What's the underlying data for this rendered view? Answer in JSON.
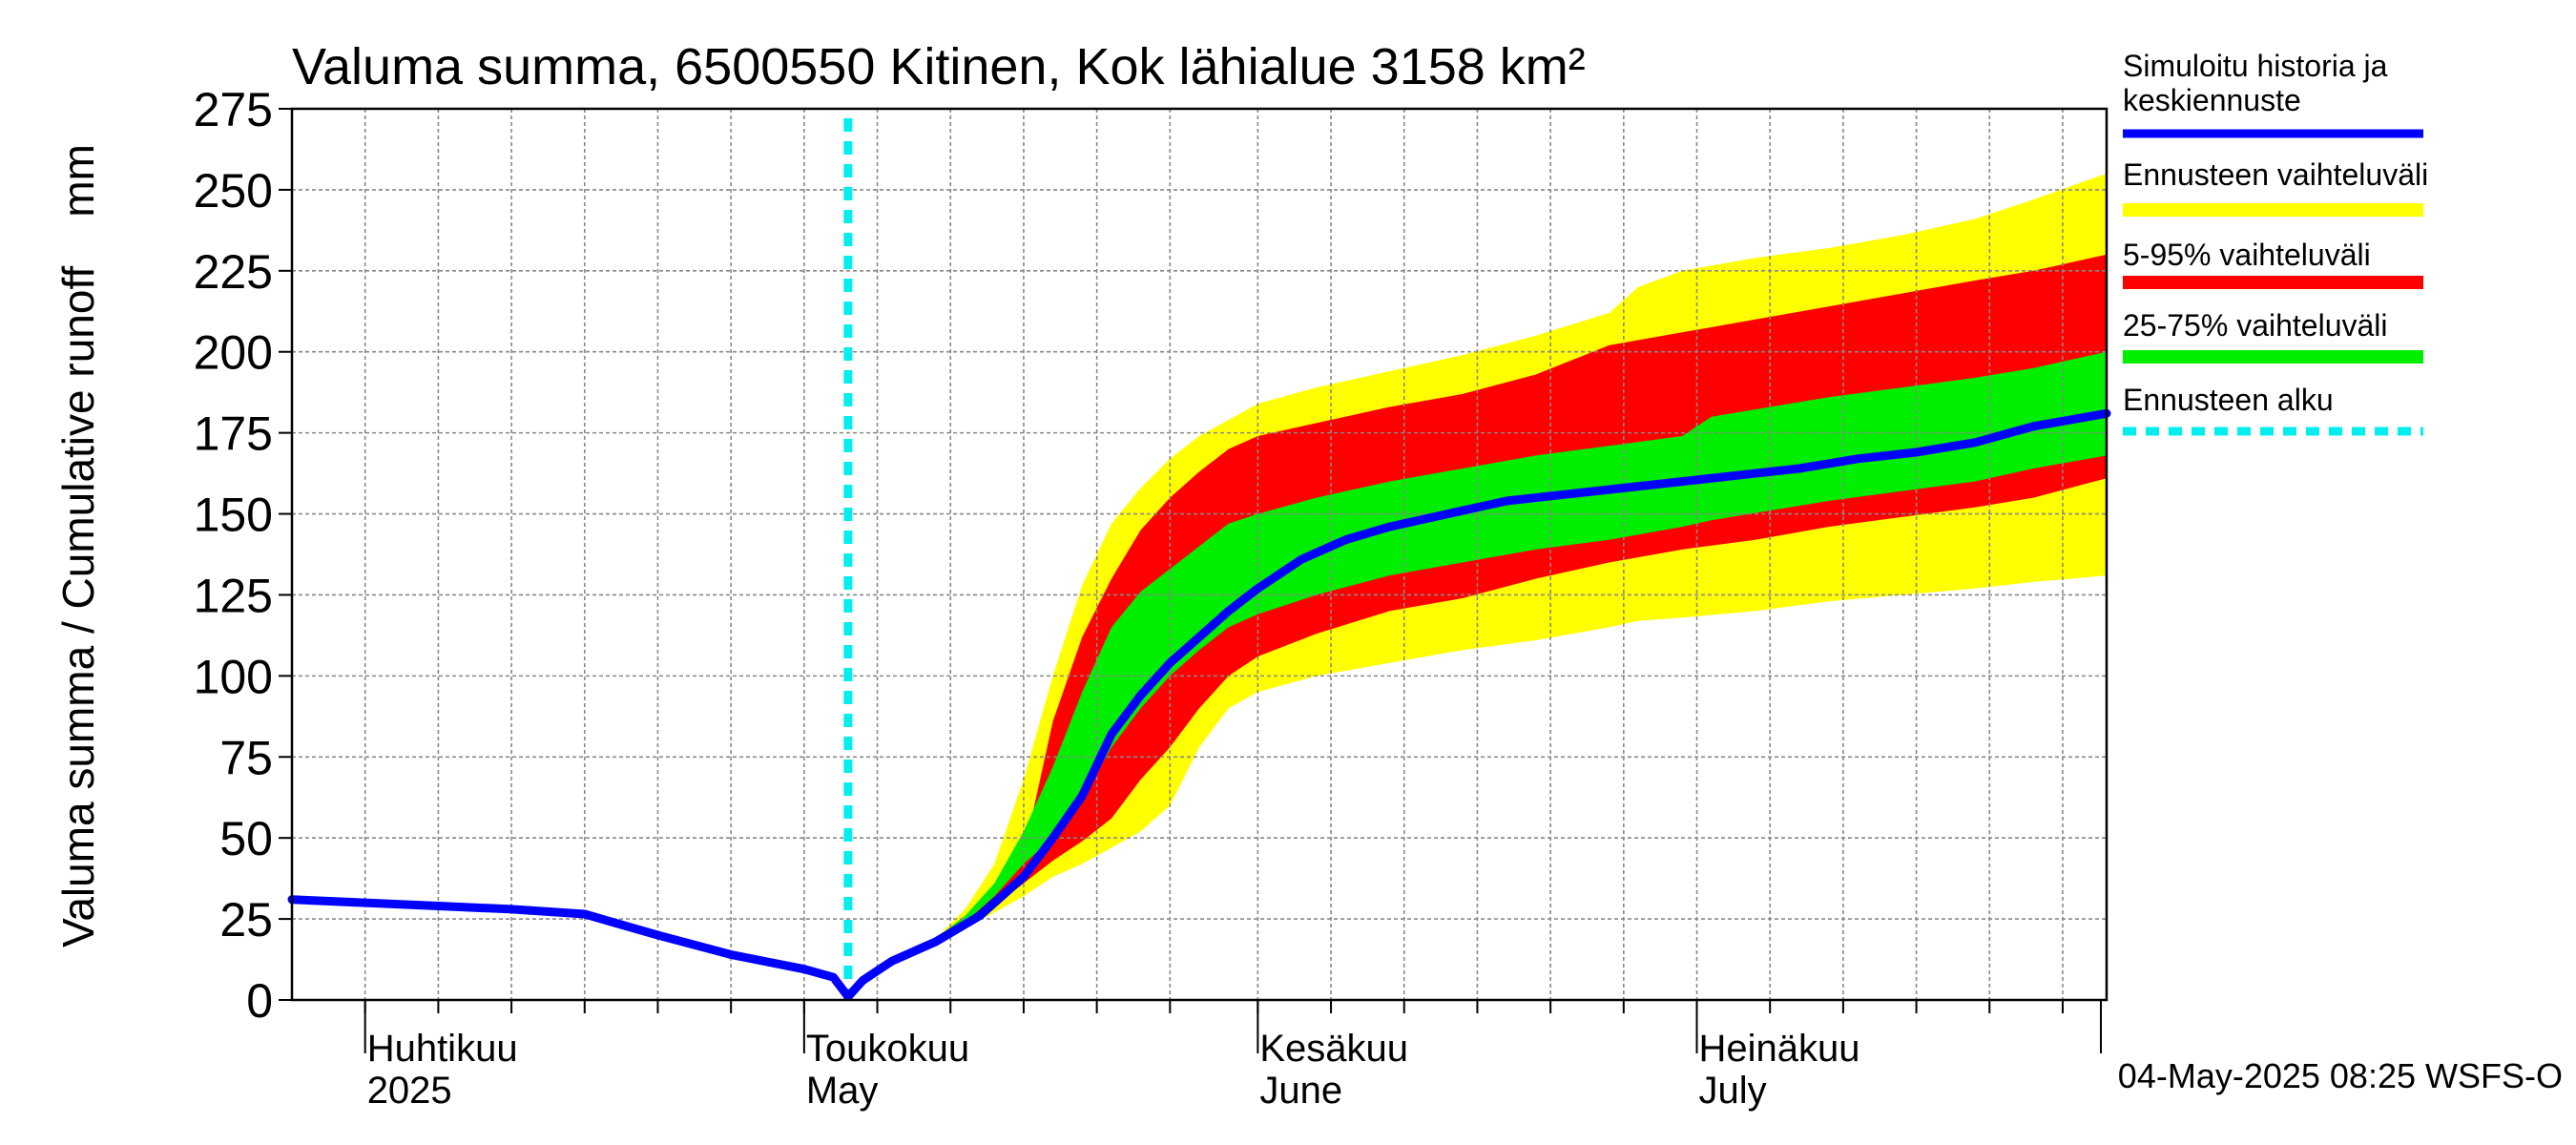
{
  "chart_data": {
    "type": "area",
    "title": "Valuma summa, 6500550 Kitinen, Kok lähialue 3158 km²",
    "ylabel": "Valuma summa / Cumulative runoff    mm",
    "ylim": [
      0,
      275
    ],
    "yticks": [
      "0",
      "25",
      "50",
      "75",
      "100",
      "125",
      "150",
      "175",
      "200",
      "225",
      "250",
      "275"
    ],
    "xlim": [
      "2025-03-27",
      "2025-07-29"
    ],
    "x_month_labels": [
      {
        "date": "2025-04-01",
        "fi": "Huhtikuu",
        "en": "2025"
      },
      {
        "date": "2025-05-01",
        "fi": "Toukokuu",
        "en": "May"
      },
      {
        "date": "2025-06-01",
        "fi": "Kesäkuu",
        "en": "June"
      },
      {
        "date": "2025-07-01",
        "fi": "Heinäkuu",
        "en": "July"
      }
    ],
    "forecast_start": "2025-05-04",
    "grid": true,
    "legend_position": "right",
    "legend": [
      {
        "label": "Simuloitu historia ja keskiennuste",
        "color": "#0000ff",
        "style": "line"
      },
      {
        "label": "Ennusteen vaihteluväli",
        "color": "#ffff00",
        "style": "band"
      },
      {
        "label": "5-95% vaihteluväli",
        "color": "#ff0000",
        "style": "band"
      },
      {
        "label": "25-75% vaihteluväli",
        "color": "#00ee00",
        "style": "band"
      },
      {
        "label": "Ennusteen alku",
        "color": "#00eeee",
        "style": "dashed"
      }
    ],
    "series": [
      {
        "name": "Simuloitu historia ja keskiennuste",
        "color": "#0000ff",
        "points": [
          [
            "2025-03-27",
            31
          ],
          [
            "2025-04-01",
            30
          ],
          [
            "2025-04-06",
            29
          ],
          [
            "2025-04-11",
            28
          ],
          [
            "2025-04-16",
            26.5
          ],
          [
            "2025-04-21",
            20
          ],
          [
            "2025-04-26",
            14
          ],
          [
            "2025-05-01",
            9.5
          ],
          [
            "2025-05-03",
            7
          ],
          [
            "2025-05-04",
            1
          ],
          [
            "2025-05-05",
            6
          ],
          [
            "2025-05-07",
            12
          ],
          [
            "2025-05-10",
            18
          ],
          [
            "2025-05-13",
            26
          ],
          [
            "2025-05-16",
            38
          ],
          [
            "2025-05-18",
            50
          ],
          [
            "2025-05-20",
            63
          ],
          [
            "2025-05-22",
            82
          ],
          [
            "2025-05-24",
            94
          ],
          [
            "2025-05-26",
            104
          ],
          [
            "2025-05-28",
            112
          ],
          [
            "2025-05-30",
            120
          ],
          [
            "2025-06-01",
            127
          ],
          [
            "2025-06-04",
            136
          ],
          [
            "2025-06-07",
            142
          ],
          [
            "2025-06-10",
            146
          ],
          [
            "2025-06-14",
            150
          ],
          [
            "2025-06-18",
            154
          ],
          [
            "2025-06-22",
            156
          ],
          [
            "2025-06-26",
            158
          ],
          [
            "2025-06-30",
            160
          ],
          [
            "2025-07-04",
            162
          ],
          [
            "2025-07-08",
            164
          ],
          [
            "2025-07-12",
            167
          ],
          [
            "2025-07-16",
            169
          ],
          [
            "2025-07-20",
            172
          ],
          [
            "2025-07-24",
            177
          ],
          [
            "2025-07-29",
            181
          ]
        ]
      }
    ],
    "bands": [
      {
        "name": "Ennusteen vaihteluväli",
        "color": "#ffff00",
        "points": [
          [
            "2025-05-04",
            1,
            1
          ],
          [
            "2025-05-07",
            11,
            12
          ],
          [
            "2025-05-10",
            17,
            19
          ],
          [
            "2025-05-12",
            22,
            28
          ],
          [
            "2025-05-14",
            27,
            42
          ],
          [
            "2025-05-16",
            32,
            68
          ],
          [
            "2025-05-18",
            38,
            100
          ],
          [
            "2025-05-20",
            42,
            128
          ],
          [
            "2025-05-22",
            47,
            147
          ],
          [
            "2025-05-24",
            52,
            158
          ],
          [
            "2025-05-26",
            60,
            167
          ],
          [
            "2025-05-28",
            78,
            174
          ],
          [
            "2025-05-30",
            90,
            179
          ],
          [
            "2025-06-01",
            95,
            184
          ],
          [
            "2025-06-05",
            100,
            189
          ],
          [
            "2025-06-10",
            104,
            194
          ],
          [
            "2025-06-15",
            108,
            199
          ],
          [
            "2025-06-20",
            111,
            205
          ],
          [
            "2025-06-25",
            115,
            212
          ],
          [
            "2025-06-27",
            117,
            220
          ],
          [
            "2025-06-30",
            118,
            225
          ],
          [
            "2025-07-05",
            120,
            229
          ],
          [
            "2025-07-10",
            123,
            232
          ],
          [
            "2025-07-15",
            125,
            236
          ],
          [
            "2025-07-20",
            127,
            241
          ],
          [
            "2025-07-24",
            129,
            247
          ],
          [
            "2025-07-29",
            131,
            255
          ]
        ]
      },
      {
        "name": "5-95% vaihteluväli",
        "color": "#ff0000",
        "points": [
          [
            "2025-05-04",
            1,
            1
          ],
          [
            "2025-05-07",
            11,
            12
          ],
          [
            "2025-05-10",
            18,
            19
          ],
          [
            "2025-05-12",
            23,
            26
          ],
          [
            "2025-05-14",
            29,
            34
          ],
          [
            "2025-05-16",
            36,
            45
          ],
          [
            "2025-05-18",
            43,
            86
          ],
          [
            "2025-05-20",
            49,
            112
          ],
          [
            "2025-05-22",
            56,
            130
          ],
          [
            "2025-05-24",
            68,
            145
          ],
          [
            "2025-05-26",
            78,
            155
          ],
          [
            "2025-05-28",
            90,
            163
          ],
          [
            "2025-05-30",
            100,
            170
          ],
          [
            "2025-06-01",
            106,
            174
          ],
          [
            "2025-06-05",
            113,
            178
          ],
          [
            "2025-06-10",
            120,
            183
          ],
          [
            "2025-06-15",
            124,
            187
          ],
          [
            "2025-06-20",
            130,
            193
          ],
          [
            "2025-06-25",
            135,
            202
          ],
          [
            "2025-06-30",
            139,
            206
          ],
          [
            "2025-07-05",
            142,
            210
          ],
          [
            "2025-07-10",
            146,
            214
          ],
          [
            "2025-07-15",
            149,
            218
          ],
          [
            "2025-07-20",
            152,
            222
          ],
          [
            "2025-07-24",
            155,
            225
          ],
          [
            "2025-07-29",
            161,
            230
          ]
        ]
      },
      {
        "name": "25-75% vaihteluväli",
        "color": "#00ee00",
        "points": [
          [
            "2025-05-04",
            1,
            1
          ],
          [
            "2025-05-07",
            11,
            12
          ],
          [
            "2025-05-10",
            18,
            19
          ],
          [
            "2025-05-12",
            24,
            26
          ],
          [
            "2025-05-14",
            32,
            36
          ],
          [
            "2025-05-16",
            42,
            52
          ],
          [
            "2025-05-18",
            50,
            72
          ],
          [
            "2025-05-20",
            62,
            95
          ],
          [
            "2025-05-22",
            78,
            115
          ],
          [
            "2025-05-24",
            90,
            126
          ],
          [
            "2025-05-26",
            100,
            133
          ],
          [
            "2025-05-28",
            108,
            140
          ],
          [
            "2025-05-30",
            115,
            147
          ],
          [
            "2025-06-01",
            119,
            150
          ],
          [
            "2025-06-05",
            125,
            155
          ],
          [
            "2025-06-10",
            131,
            160
          ],
          [
            "2025-06-15",
            135,
            164
          ],
          [
            "2025-06-20",
            139,
            168
          ],
          [
            "2025-06-25",
            142,
            171
          ],
          [
            "2025-06-30",
            146,
            174
          ],
          [
            "2025-07-02",
            148,
            180
          ],
          [
            "2025-07-06",
            151,
            183
          ],
          [
            "2025-07-10",
            154,
            186
          ],
          [
            "2025-07-15",
            157,
            189
          ],
          [
            "2025-07-20",
            160,
            192
          ],
          [
            "2025-07-24",
            164,
            195
          ],
          [
            "2025-07-29",
            168,
            200
          ]
        ]
      }
    ],
    "footer": "04-May-2025 08:25 WSFS-O"
  }
}
